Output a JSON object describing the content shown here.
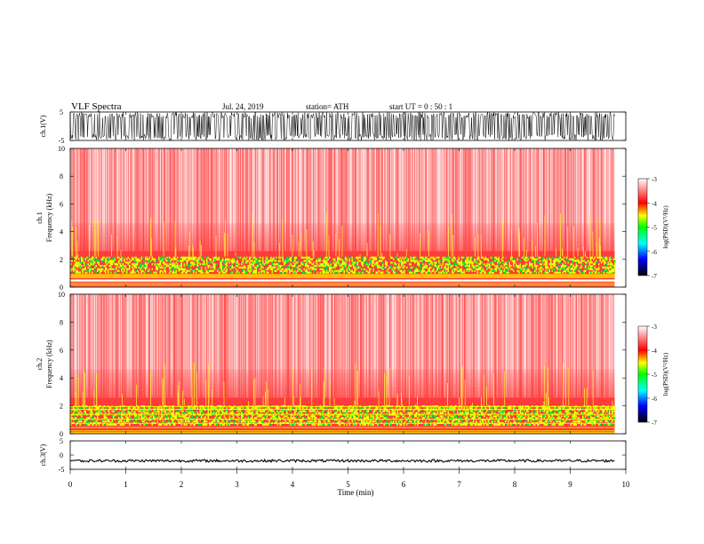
{
  "header": {
    "title": "VLF  Spectra",
    "date": "Jul.  24, 2019",
    "station": "station= ATH",
    "start": "start  UT  =    0  : 50 : 1"
  },
  "colors": {
    "background": "#ffffff",
    "trace": "#000000",
    "colormap": [
      "#000000",
      "#0000ff",
      "#00ffff",
      "#00ff00",
      "#ffff00",
      "#ff0000",
      "#ffffff"
    ]
  },
  "chart_data": [
    {
      "type": "line",
      "panel": "ch1-waveform",
      "ylabel": "ch.1(V)",
      "ylim": [
        -5,
        5
      ],
      "yticks": [
        5,
        -5
      ],
      "xlim": [
        0,
        10
      ],
      "description_values": {
        "amplitude_range": [
          -5,
          5
        ]
      }
    },
    {
      "type": "heatmap",
      "panel": "ch1-spectrogram",
      "ylabel_top": "ch.1",
      "ylabel": "Frequency  (kHz)",
      "ylim": [
        0,
        10
      ],
      "yticks": [
        0,
        2,
        4,
        6,
        8,
        10
      ],
      "xlim": [
        0,
        10
      ],
      "data_end_min": 9.8,
      "colorbar": {
        "label": "log(PSD)(V²/Hz)",
        "ticks": [
          -3,
          -4,
          -5,
          -6,
          -7
        ],
        "range": [
          -7,
          -3
        ]
      },
      "features": {
        "strong_band_khz": [
          1.0,
          2.2
        ],
        "gap_khz": [
          0.4,
          0.55
        ]
      }
    },
    {
      "type": "heatmap",
      "panel": "ch2-spectrogram",
      "ylabel_top": "ch.2",
      "ylabel": "Frequency  (kHz)",
      "ylim": [
        0,
        10
      ],
      "yticks": [
        0,
        2,
        4,
        6,
        8,
        10
      ],
      "xlim": [
        0,
        10
      ],
      "data_end_min": 9.8,
      "colorbar": {
        "label": "log(PSD)(V²/Hz)",
        "ticks": [
          -3,
          -4,
          -5,
          -6,
          -7
        ],
        "range": [
          -7,
          -3
        ]
      },
      "features": {
        "strong_band_khz": [
          0.6,
          2.0
        ]
      }
    },
    {
      "type": "line",
      "panel": "ch3-waveform",
      "ylabel": "ch.3(V)",
      "ylim": [
        -5,
        5
      ],
      "yticks": [
        5,
        0,
        -5
      ],
      "xlim": [
        0,
        10
      ],
      "xticks": [
        0,
        1,
        2,
        3,
        4,
        5,
        6,
        7,
        8,
        9,
        10
      ],
      "xlabel": "Time  (min)",
      "description_values": {
        "level_v": -2
      }
    }
  ]
}
